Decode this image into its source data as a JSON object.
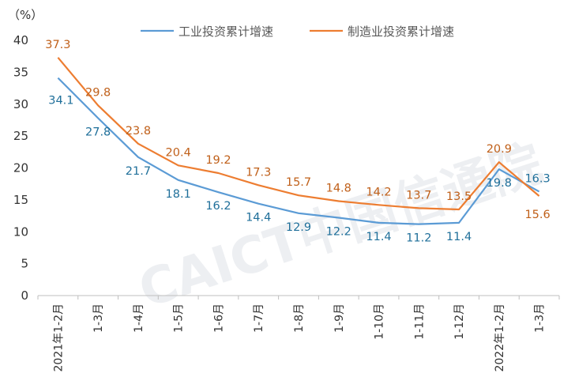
{
  "chart_data": {
    "type": "line",
    "unit_label": "（%）",
    "watermark": "CAICT中国信通院",
    "categories": [
      "2021年1-2月",
      "1-3月",
      "1-4月",
      "1-5月",
      "1-6月",
      "1-7月",
      "1-8月",
      "1-9月",
      "1-10月",
      "1-11月",
      "1-12月",
      "2022年1-2月",
      "1-3月"
    ],
    "series": [
      {
        "name": "工业投资累计增速",
        "color": "#5b9bd5",
        "label_color": "#1f6f9a",
        "values": [
          34.1,
          27.8,
          21.7,
          18.1,
          16.2,
          14.4,
          12.9,
          12.2,
          11.4,
          11.2,
          11.4,
          19.8,
          16.3
        ]
      },
      {
        "name": "制造业投资累计增速",
        "color": "#ed7d31",
        "label_color": "#c0601a",
        "values": [
          37.3,
          29.8,
          23.8,
          20.4,
          19.2,
          17.3,
          15.7,
          14.8,
          14.2,
          13.7,
          13.5,
          20.9,
          15.6
        ]
      }
    ],
    "yticks": [
      "0",
      "5",
      "10",
      "15",
      "20",
      "25",
      "30",
      "35",
      "40"
    ],
    "ylim": [
      0,
      40
    ],
    "legend_position": "top-center",
    "grid": false
  }
}
